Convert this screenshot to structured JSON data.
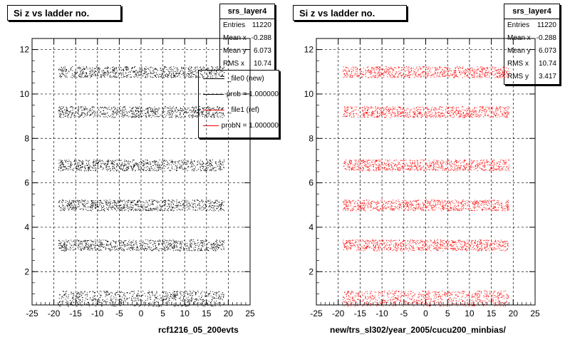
{
  "chart_data": [
    {
      "type": "scatter",
      "title": "Si z vs ladder no.",
      "xlabel": "rcf1216_05_200evts",
      "ylabel": "",
      "xlim": [
        -25,
        25
      ],
      "ylim": [
        0.5,
        12.5
      ],
      "x_ticks": [
        "-25",
        "-20",
        "-15",
        "-10",
        "-5",
        "0",
        "5",
        "10",
        "15",
        "20",
        "25"
      ],
      "y_ticks": [
        "2",
        "4",
        "6",
        "8",
        "10",
        "12"
      ],
      "grid": true,
      "color": "#000000",
      "bands": [
        {
          "x_range": [
            -19,
            19
          ],
          "y_center": 0.8,
          "y_halfwidth": 0.35
        },
        {
          "x_range": [
            -19,
            19
          ],
          "y_center": 3.2,
          "y_halfwidth": 0.25
        },
        {
          "x_range": [
            -19,
            19
          ],
          "y_center": 5.0,
          "y_halfwidth": 0.25
        },
        {
          "x_range": [
            -19,
            19
          ],
          "y_center": 6.8,
          "y_halfwidth": 0.25
        },
        {
          "x_range": [
            -19,
            19
          ],
          "y_center": 9.2,
          "y_halfwidth": 0.25
        },
        {
          "x_range": [
            -19,
            19
          ],
          "y_center": 11.0,
          "y_halfwidth": 0.25
        }
      ],
      "stats": {
        "name": "srs_layer4",
        "rows": [
          {
            "label": "Entries",
            "value": "11220"
          },
          {
            "label": "Mean x",
            "value": "-0.288"
          },
          {
            "label": "Mean y",
            "value": "6.073"
          },
          {
            "label": "RMS x",
            "value": "10.74"
          }
        ]
      },
      "legend": [
        {
          "label": "_file0 (new)",
          "color": "#000000"
        },
        {
          "label": "prob = 1.000000",
          "color": "#000000"
        },
        {
          "label": "_file1 (ref)",
          "color": "#ff0000"
        },
        {
          "label": "probN = 1.000000",
          "color": "#ff0000"
        }
      ]
    },
    {
      "type": "scatter",
      "title": "Si z vs ladder no.",
      "xlabel": "new/trs_sl302/year_2005/cucu200_minbias/",
      "ylabel": "",
      "xlim": [
        -25,
        25
      ],
      "ylim": [
        0.5,
        12.5
      ],
      "x_ticks": [
        "-25",
        "-20",
        "-15",
        "-10",
        "-5",
        "0",
        "5",
        "10",
        "15",
        "20",
        "25"
      ],
      "y_ticks": [
        "2",
        "4",
        "6",
        "8",
        "10",
        "12"
      ],
      "grid": true,
      "color": "#ff0000",
      "bands": [
        {
          "x_range": [
            -19,
            19
          ],
          "y_center": 0.8,
          "y_halfwidth": 0.35
        },
        {
          "x_range": [
            -19,
            19
          ],
          "y_center": 3.2,
          "y_halfwidth": 0.25
        },
        {
          "x_range": [
            -19,
            19
          ],
          "y_center": 5.0,
          "y_halfwidth": 0.25
        },
        {
          "x_range": [
            -19,
            19
          ],
          "y_center": 6.8,
          "y_halfwidth": 0.25
        },
        {
          "x_range": [
            -19,
            19
          ],
          "y_center": 9.2,
          "y_halfwidth": 0.25
        },
        {
          "x_range": [
            -19,
            19
          ],
          "y_center": 11.0,
          "y_halfwidth": 0.25
        }
      ],
      "stats": {
        "name": "srs_layer4",
        "rows": [
          {
            "label": "Entries",
            "value": "11220"
          },
          {
            "label": "Mean x",
            "value": "-0.288"
          },
          {
            "label": "Mean y",
            "value": "6.073"
          },
          {
            "label": "RMS x",
            "value": "10.74"
          },
          {
            "label": "RMS y",
            "value": "3.417"
          }
        ]
      }
    }
  ]
}
